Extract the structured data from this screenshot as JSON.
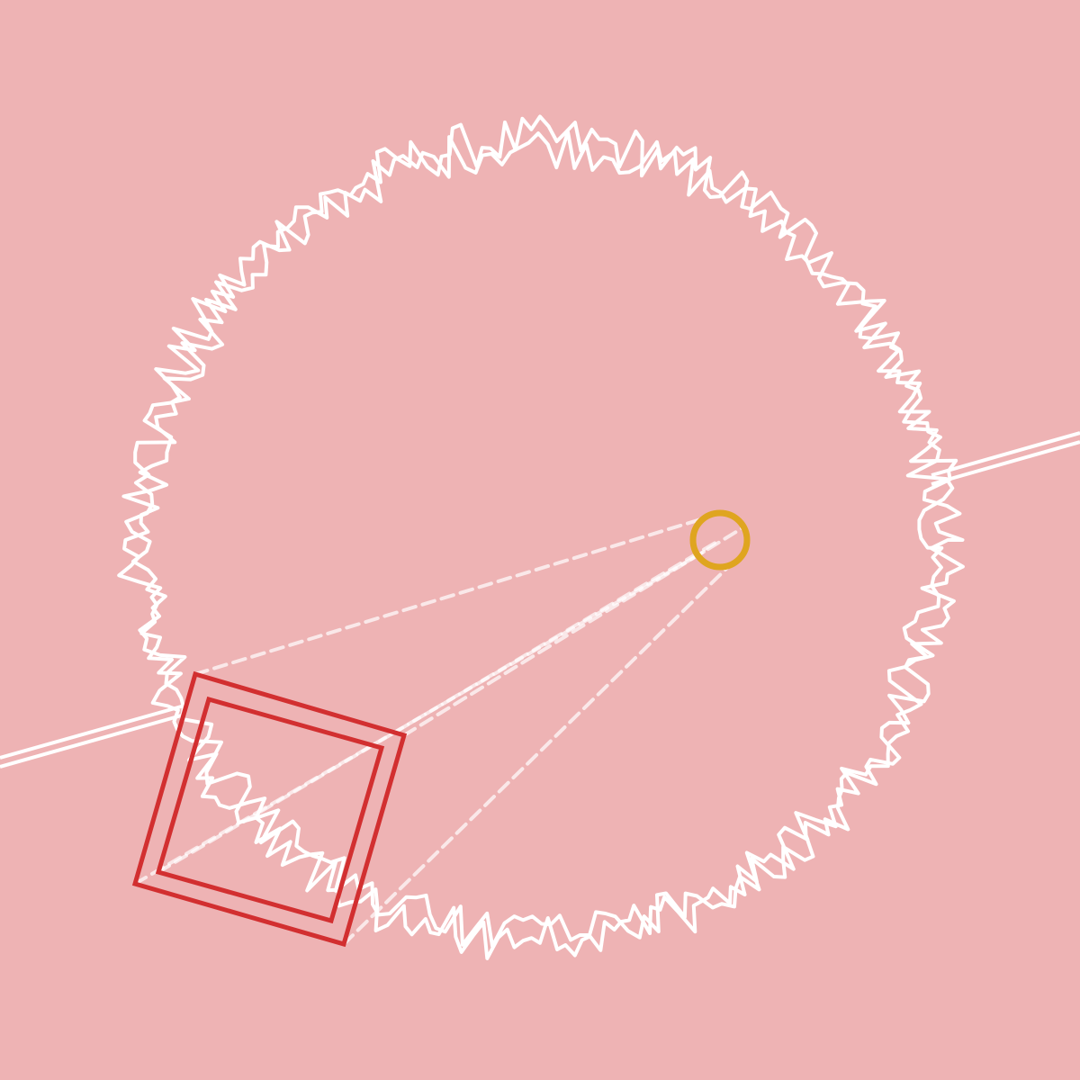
{
  "scene": {
    "background_color": "#EEB3B4",
    "stroke_color": "#FFFFFF",
    "accent_red": "#D22F30",
    "accent_gold": "#DFA520",
    "elements": [
      "spiky-white-ring",
      "white-double-line",
      "gold-ring",
      "dashed-connector-lines",
      "red-double-square"
    ]
  }
}
